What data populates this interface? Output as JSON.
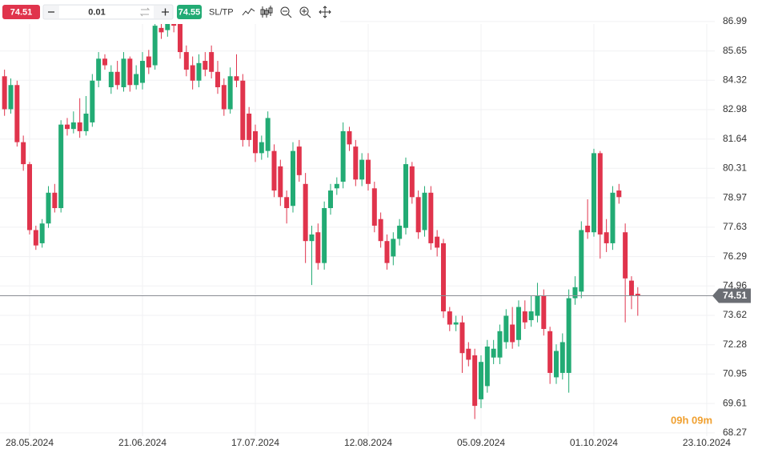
{
  "toolbar": {
    "sell_price": "74.51",
    "lot": "0.01",
    "buy_price": "74.55",
    "sl_tp": "SL/TP"
  },
  "countdown": "09h 09m",
  "chart_data": {
    "type": "candlestick",
    "categories": [
      null,
      null,
      null,
      null,
      "28.05.2024",
      null,
      null,
      null,
      null,
      null,
      null,
      null,
      null,
      null,
      null,
      null,
      null,
      null,
      null,
      null,
      null,
      null,
      "21.06.2024",
      null,
      null,
      null,
      null,
      null,
      null,
      null,
      null,
      null,
      null,
      null,
      null,
      null,
      null,
      null,
      null,
      null,
      "17.07.2024",
      null,
      null,
      null,
      null,
      null,
      null,
      null,
      null,
      null,
      null,
      null,
      null,
      null,
      null,
      null,
      null,
      null,
      "12.08.2024",
      null,
      null,
      null,
      null,
      null,
      null,
      null,
      null,
      null,
      null,
      null,
      null,
      null,
      null,
      null,
      null,
      null,
      "05.09.2024",
      null,
      null,
      null,
      null,
      null,
      null,
      null,
      null,
      null,
      null,
      null,
      null,
      null,
      null,
      null,
      null,
      null,
      "01.10.2024",
      null,
      null,
      null,
      null,
      null,
      null,
      null,
      null,
      null,
      null,
      null,
      null,
      null,
      null,
      null,
      null,
      null,
      "23.10.2024"
    ],
    "open": [
      84.5,
      83.0,
      84.1,
      81.5,
      80.5,
      77.5,
      76.9,
      77.8,
      79.2,
      78.5,
      82.3,
      82.1,
      82.4,
      82.0,
      82.4,
      84.3,
      85.3,
      84.0,
      84.7,
      84.0,
      85.3,
      84.1,
      84.2,
      85.4,
      85.0,
      86.7,
      86.6,
      87.2,
      86.9,
      85.6,
      85.0,
      84.3,
      85.2,
      85.6,
      84.7,
      84.1,
      83.0,
      84.5,
      84.3,
      82.8,
      82.0,
      81.0,
      81.1,
      81.1,
      80.4,
      79.0,
      78.6,
      81.3,
      79.6,
      77.0,
      77.4,
      76.0,
      78.5,
      79.4,
      79.7,
      82.0,
      81.3,
      79.8,
      80.7,
      79.4,
      78.0,
      77.0,
      76.3,
      77.1,
      77.6,
      80.4,
      79.0,
      77.5,
      79.2,
      77.2,
      76.9,
      73.8,
      73.2,
      73.3,
      72.1,
      71.8,
      69.8,
      70.4,
      71.7,
      71.7,
      72.4,
      73.2,
      72.5,
      73.8,
      73.4,
      73.6,
      74.5,
      72.9,
      70.8,
      71.0,
      71.0,
      74.4,
      74.7,
      77.7,
      77.4,
      81.0,
      77.4,
      76.9,
      79.3,
      77.4,
      75.2,
      74.6,
      null,
      null,
      null,
      null,
      null,
      null,
      null,
      null,
      null,
      null,
      null
    ],
    "high": [
      84.8,
      84.4,
      84.3,
      81.8,
      80.6,
      77.7,
      78.0,
      79.5,
      79.6,
      82.5,
      82.6,
      82.9,
      83.5,
      83.6,
      84.6,
      85.6,
      85.5,
      85.0,
      85.2,
      85.6,
      85.4,
      85.0,
      85.6,
      85.7,
      87.2,
      87.1,
      87.4,
      87.5,
      87.1,
      85.9,
      85.4,
      85.5,
      85.6,
      85.9,
      85.2,
      84.4,
      84.9,
      85.5,
      84.6,
      83.1,
      82.3,
      81.8,
      82.9,
      81.4,
      80.7,
      79.3,
      81.5,
      81.6,
      80.1,
      77.7,
      77.8,
      78.8,
      79.6,
      79.9,
      82.4,
      82.2,
      81.6,
      81.0,
      81.0,
      79.7,
      78.3,
      77.3,
      77.4,
      78.0,
      80.8,
      80.6,
      79.3,
      79.5,
      79.5,
      77.5,
      77.1,
      74.0,
      73.6,
      73.6,
      72.4,
      72.1,
      71.8,
      72.5,
      72.5,
      73.2,
      73.9,
      74.0,
      74.3,
      74.3,
      74.5,
      75.1,
      74.8,
      73.1,
      72.3,
      72.8,
      74.8,
      75.4,
      77.9,
      78.9,
      81.2,
      81.1,
      78.0,
      79.5,
      79.6,
      77.8,
      75.4,
      74.9,
      null,
      null,
      null,
      null,
      null,
      null,
      null,
      null,
      null,
      null,
      null
    ],
    "low": [
      82.7,
      82.8,
      81.3,
      80.2,
      77.3,
      76.6,
      76.7,
      77.6,
      78.3,
      78.3,
      81.8,
      81.9,
      81.7,
      81.8,
      82.2,
      84.0,
      84.8,
      83.7,
      83.9,
      83.8,
      83.8,
      83.9,
      83.9,
      84.6,
      84.8,
      86.2,
      86.3,
      86.5,
      85.3,
      84.5,
      83.9,
      84.0,
      84.5,
      84.4,
      83.7,
      82.7,
      82.8,
      84.0,
      81.3,
      81.3,
      80.6,
      80.7,
      80.8,
      79.0,
      78.6,
      77.8,
      78.3,
      79.7,
      76.0,
      75.0,
      75.7,
      75.7,
      78.2,
      79.1,
      79.4,
      81.1,
      79.5,
      79.5,
      79.3,
      77.4,
      76.7,
      75.7,
      75.9,
      76.8,
      77.3,
      78.7,
      77.1,
      77.2,
      76.6,
      76.3,
      73.5,
      72.9,
      72.9,
      71.0,
      71.3,
      68.9,
      69.4,
      70.1,
      71.4,
      71.4,
      72.1,
      72.1,
      72.2,
      73.0,
      73.1,
      73.3,
      72.7,
      70.5,
      70.5,
      70.7,
      70.1,
      74.1,
      74.4,
      77.1,
      77.2,
      76.2,
      76.5,
      76.6,
      78.7,
      73.3,
      73.9,
      73.6,
      null,
      null,
      null,
      null,
      null,
      null,
      null,
      null,
      null,
      null,
      null
    ],
    "close": [
      83.0,
      84.1,
      81.5,
      80.5,
      77.5,
      76.8,
      77.8,
      79.2,
      78.5,
      82.3,
      82.1,
      82.4,
      82.0,
      82.8,
      84.3,
      85.3,
      85.0,
      84.7,
      84.1,
      85.3,
      84.1,
      84.6,
      85.2,
      84.9,
      86.8,
      86.5,
      87.0,
      86.8,
      85.6,
      84.8,
      84.3,
      85.1,
      84.8,
      84.7,
      84.0,
      83.0,
      84.5,
      84.3,
      81.6,
      81.6,
      81.0,
      81.5,
      82.6,
      79.3,
      79.0,
      78.5,
      81.1,
      80.0,
      77.0,
      77.3,
      76.0,
      78.5,
      79.3,
      79.6,
      82.0,
      81.4,
      79.8,
      80.7,
      79.6,
      77.7,
      77.0,
      76.0,
      77.1,
      77.7,
      80.5,
      79.0,
      77.4,
      79.2,
      76.9,
      76.7,
      73.8,
      73.2,
      73.3,
      71.9,
      71.6,
      69.5,
      71.5,
      72.2,
      72.1,
      72.9,
      73.6,
      72.4,
      74.0,
      73.3,
      73.8,
      74.5,
      73.0,
      71.0,
      72.0,
      72.4,
      74.4,
      74.9,
      77.5,
      77.4,
      81.0,
      77.3,
      76.9,
      79.2,
      79.0,
      75.3,
      74.5,
      74.51,
      null,
      null,
      null,
      null,
      null,
      null,
      null,
      null,
      null,
      null,
      null
    ],
    "up_color": "#22ab74",
    "down_color": "#e0344c",
    "ylim": [
      68.12,
      87.97
    ],
    "yticks": [
      86.99,
      85.65,
      84.32,
      82.98,
      81.64,
      80.31,
      78.97,
      77.63,
      76.29,
      74.96,
      73.62,
      72.28,
      70.95,
      69.61,
      68.27
    ],
    "last_price": 74.51,
    "grid": true
  }
}
